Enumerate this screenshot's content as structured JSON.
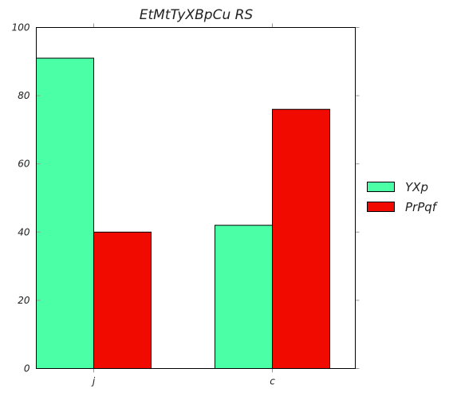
{
  "chart_data": {
    "type": "bar",
    "title": "EtMtTyXBpCu RS",
    "xlabel": "",
    "ylabel": "",
    "categories": [
      "j",
      "c"
    ],
    "series": [
      {
        "name": "YXp",
        "values": [
          91,
          42
        ],
        "color": "#4affa6"
      },
      {
        "name": "PrPqf",
        "values": [
          40,
          76
        ],
        "color": "#f00a00"
      }
    ],
    "ylim": [
      0,
      100
    ],
    "yticks": [
      0,
      20,
      40,
      60,
      80,
      100
    ],
    "grid": false,
    "legend": "right"
  }
}
